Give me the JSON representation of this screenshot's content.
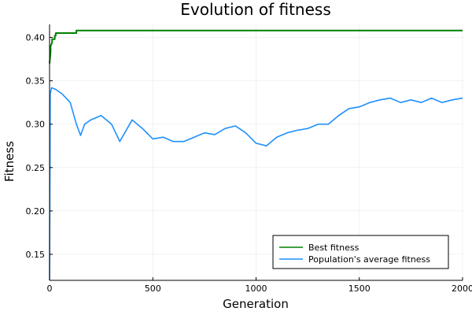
{
  "chart_data": {
    "type": "line",
    "title": "Evolution of fitness",
    "xlabel": "Generation",
    "ylabel": "Fitness",
    "xlim": [
      0,
      2000
    ],
    "ylim": [
      0.12,
      0.415
    ],
    "xticks": [
      0,
      500,
      1000,
      1500,
      2000
    ],
    "yticks": [
      0.15,
      0.2,
      0.25,
      0.3,
      0.35,
      0.4
    ],
    "xtick_labels": [
      "0",
      "500",
      "1000",
      "1500",
      "2000"
    ],
    "ytick_labels": [
      "0.15",
      "0.20",
      "0.25",
      "0.30",
      "0.35",
      "0.40"
    ],
    "grid": true,
    "legend_position": "bottom-right",
    "series": [
      {
        "name": "Best fitness",
        "color": "#008000",
        "x": [
          0,
          5,
          5,
          12,
          12,
          25,
          25,
          30,
          30,
          130,
          130,
          2000
        ],
        "y": [
          0.37,
          0.383,
          0.39,
          0.394,
          0.398,
          0.398,
          0.402,
          0.402,
          0.405,
          0.405,
          0.408,
          0.408
        ]
      },
      {
        "name": "Population's average fitness",
        "color": "#1e90ff",
        "x": [
          0,
          3,
          10,
          30,
          60,
          100,
          130,
          150,
          170,
          200,
          250,
          300,
          340,
          400,
          450,
          500,
          550,
          600,
          650,
          700,
          750,
          800,
          850,
          900,
          950,
          1000,
          1050,
          1100,
          1150,
          1200,
          1250,
          1300,
          1350,
          1400,
          1450,
          1500,
          1550,
          1600,
          1650,
          1700,
          1750,
          1800,
          1850,
          1900,
          1950,
          2000
        ],
        "y": [
          0.12,
          0.335,
          0.342,
          0.34,
          0.335,
          0.325,
          0.3,
          0.287,
          0.3,
          0.305,
          0.31,
          0.3,
          0.28,
          0.305,
          0.295,
          0.283,
          0.285,
          0.28,
          0.28,
          0.285,
          0.29,
          0.288,
          0.295,
          0.298,
          0.29,
          0.278,
          0.275,
          0.285,
          0.29,
          0.293,
          0.295,
          0.3,
          0.3,
          0.31,
          0.318,
          0.32,
          0.325,
          0.328,
          0.33,
          0.325,
          0.328,
          0.325,
          0.33,
          0.325,
          0.328,
          0.33
        ]
      }
    ]
  }
}
